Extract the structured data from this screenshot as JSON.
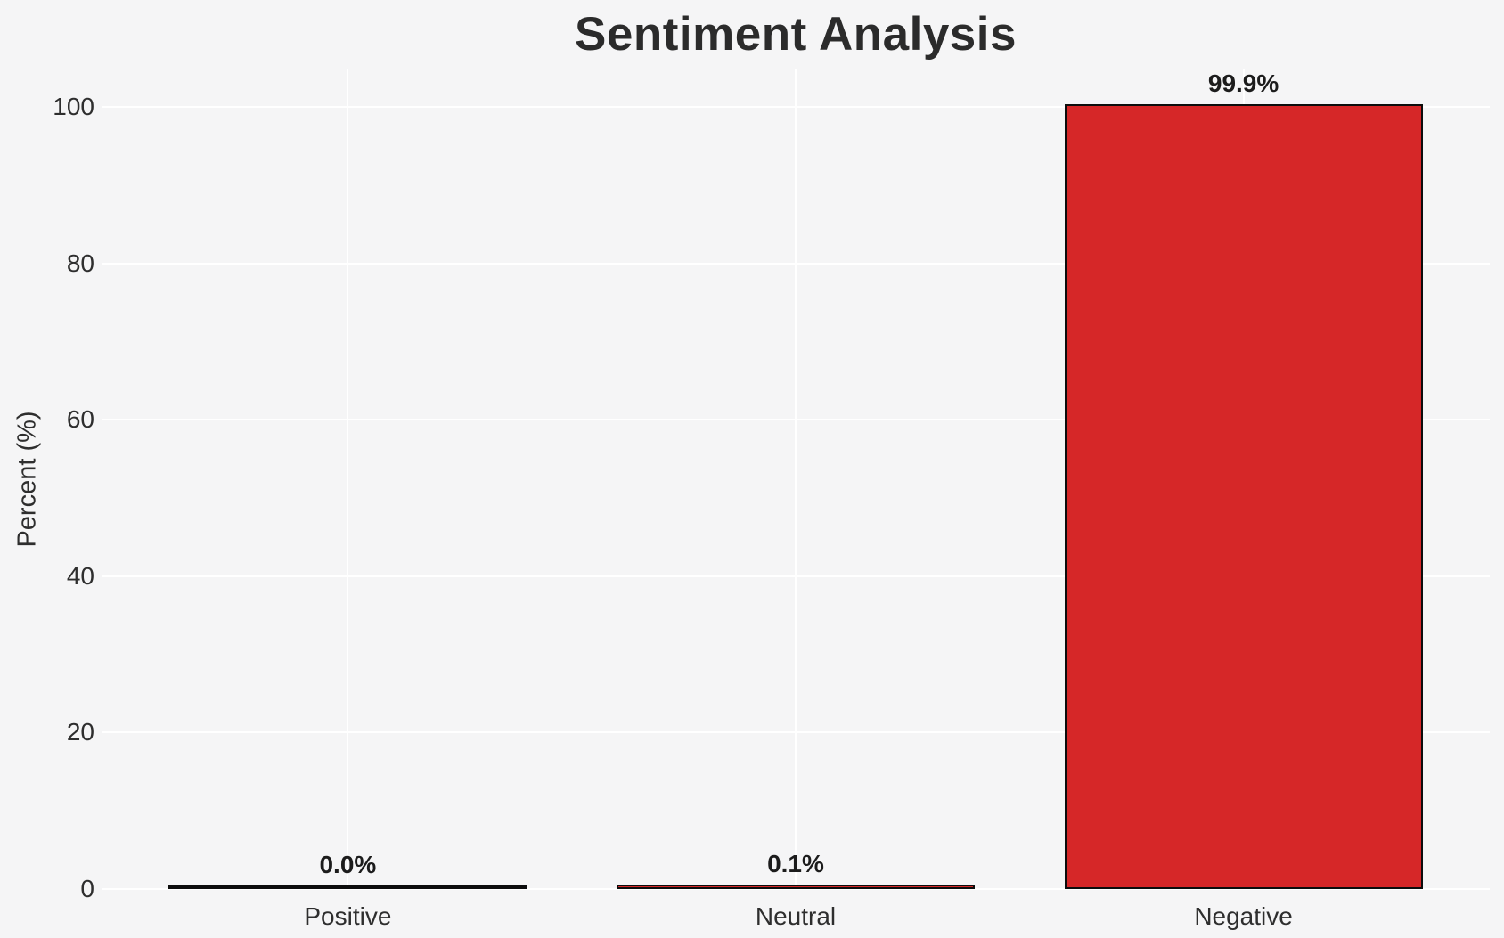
{
  "chart_data": {
    "type": "bar",
    "title": "Sentiment Analysis",
    "xlabel": "",
    "ylabel": "Percent (%)",
    "categories": [
      "Positive",
      "Neutral",
      "Negative"
    ],
    "values": [
      0.0,
      0.1,
      99.9
    ],
    "value_labels": [
      "0.0%",
      "0.1%",
      "99.9%"
    ],
    "yticks": [
      0,
      20,
      40,
      60,
      80,
      100
    ],
    "ytick_labels": [
      "0",
      "20",
      "40",
      "60",
      "80",
      "100"
    ],
    "ylim": [
      0,
      104.8
    ],
    "grid": true,
    "legend": false,
    "colors": {
      "background": "#f5f5f6",
      "grid": "#ffffff",
      "bar_fill": "#d62728",
      "bar_edge": "#0d0d0d",
      "title_text": "#2b2b2b",
      "tick_text": "#2e2e2e",
      "value_text": "#1c1c1c"
    }
  }
}
